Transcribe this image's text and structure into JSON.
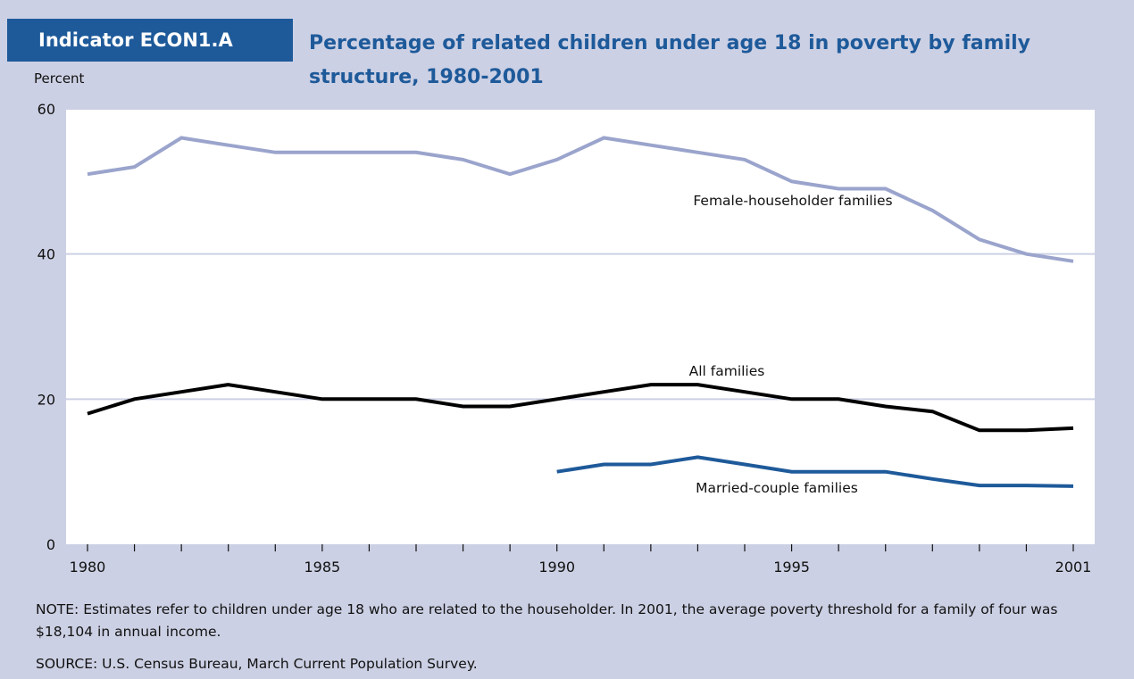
{
  "header": {
    "indicator": "Indicator ECON1.A",
    "title": "Percentage of related children under age 18 in poverty by family structure, 1980-2001"
  },
  "footer": {
    "note": "NOTE: Estimates refer to children under age 18 who are related to the householder. In 2001, the average poverty threshold for a family of four was $18,104 in annual income.",
    "source": "SOURCE: U.S. Census Bureau, March Current Population Survey."
  },
  "chart_data": {
    "type": "line",
    "title": "Percentage of related children under age 18 in poverty by family structure, 1980-2001",
    "ylabel": "Percent",
    "xlabel": "",
    "ylim": [
      0,
      60
    ],
    "xlim": [
      1980,
      2001
    ],
    "y_ticks": [
      0,
      20,
      40,
      60
    ],
    "x_ticks": [
      1980,
      1985,
      1990,
      1995,
      2001
    ],
    "grid": true,
    "x": [
      1980,
      1981,
      1982,
      1983,
      1984,
      1985,
      1986,
      1987,
      1988,
      1989,
      1990,
      1991,
      1992,
      1993,
      1994,
      1995,
      1996,
      1997,
      1998,
      1999,
      2000,
      2001
    ],
    "series": [
      {
        "name": "Female-householder families",
        "color": "#9aa4cc",
        "values": [
          51,
          52,
          56,
          55,
          54,
          54,
          54,
          54,
          53,
          51,
          53,
          56,
          55,
          54,
          53,
          50,
          49,
          49,
          46,
          42,
          40,
          39
        ]
      },
      {
        "name": "All families",
        "color": "#000000",
        "values": [
          18,
          20,
          21,
          22,
          21,
          20,
          20,
          20,
          19,
          19,
          20,
          21,
          22,
          22,
          21,
          20,
          20,
          19,
          18.3,
          15.7,
          15.7,
          16
        ]
      },
      {
        "name": "Married-couple families",
        "color": "#1e5a9a",
        "values": [
          null,
          null,
          null,
          null,
          null,
          null,
          null,
          null,
          null,
          null,
          10,
          11,
          11,
          12,
          11,
          10,
          10,
          10,
          9,
          8.1,
          8.1,
          8
        ]
      }
    ]
  }
}
